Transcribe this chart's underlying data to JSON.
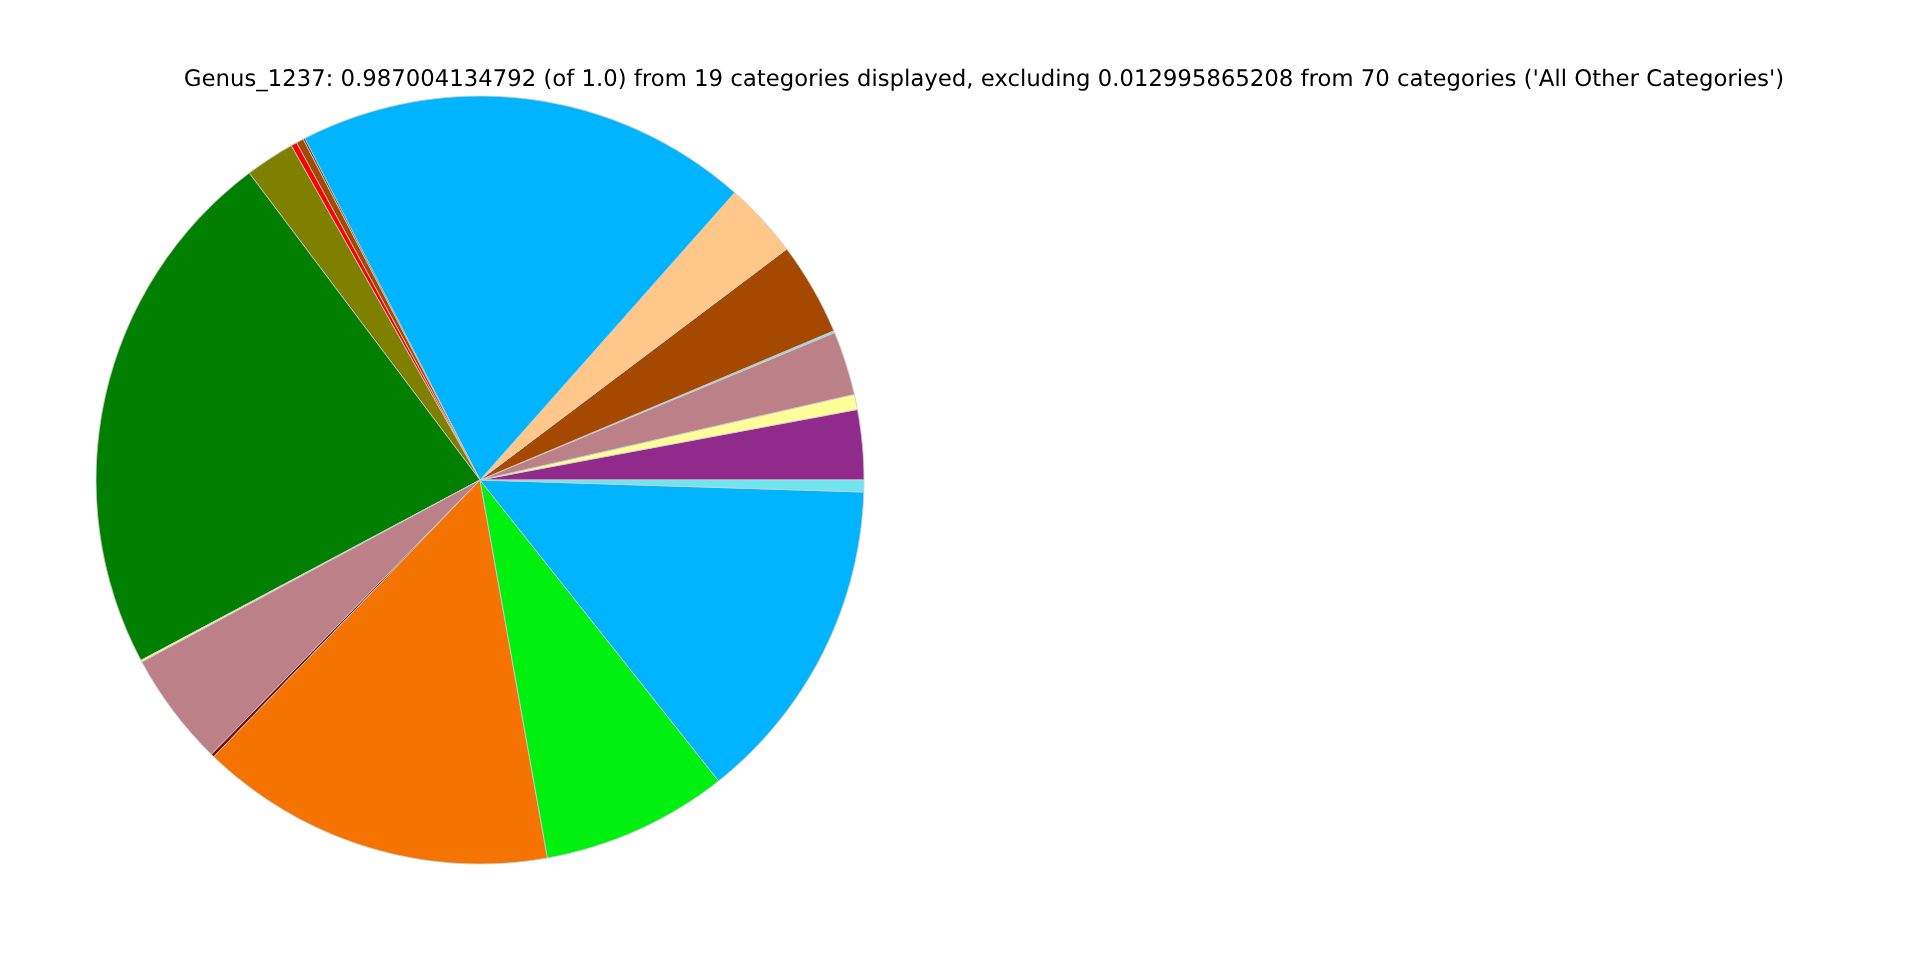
{
  "chart_data": {
    "type": "pie",
    "title": "Genus_1237: 0.987004134792 (of 1.0) from 19 categories displayed, excluding 0.012995865208 from 70 categories ('All Other Categories')",
    "categories": [
      null,
      null,
      null,
      null,
      null,
      null,
      null,
      null,
      null,
      null,
      null,
      null,
      null,
      null,
      null,
      null,
      null,
      null,
      null
    ],
    "values": [
      2.94,
      0.64,
      2.69,
      0.08,
      3.92,
      3.19,
      19.08,
      0.08,
      0.31,
      0.25,
      2.08,
      22.52,
      0.08,
      4.81,
      0.14,
      15.0,
      7.86,
      13.83,
      0.5
    ],
    "colors": [
      "#912b8b",
      "#ffff99",
      "#bc8089",
      "#6ee6f0",
      "#a54800",
      "#ffc78a",
      "#00b4ff",
      "#2f4f2f",
      "#a54800",
      "#ff0000",
      "#808000",
      "#007f00",
      "#ffff99",
      "#bc8089",
      "#7a1010",
      "#f47301",
      "#00f00f",
      "#00b4ff",
      "#6ee6f0"
    ],
    "legend": false
  }
}
